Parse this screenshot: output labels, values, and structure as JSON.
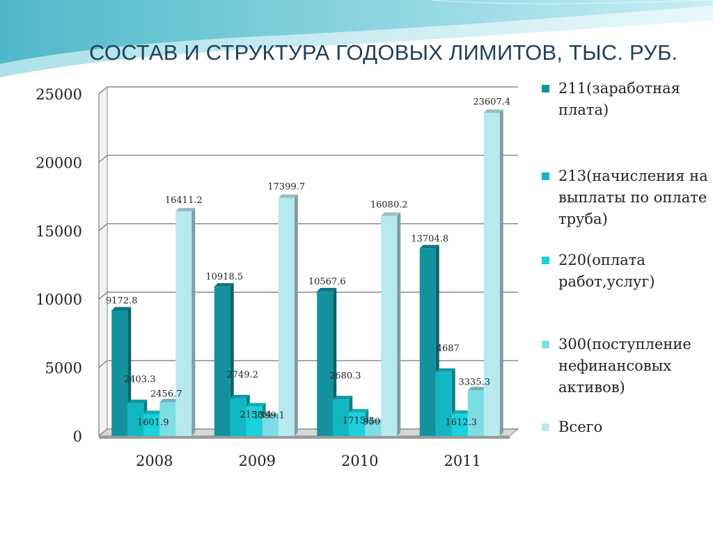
{
  "slide": {
    "title": "СОСТАВ И СТРУКТУРА ГОДОВЫХ ЛИМИТОВ, ТЫС. РУБ.",
    "colors": {
      "header_wave_dark": "#58c0d0",
      "header_wave_light": "#bde7ef",
      "title": "#1f3f5a"
    }
  },
  "chart_data": {
    "type": "bar",
    "title": "",
    "xlabel": "",
    "ylabel": "",
    "categories": [
      "2008",
      "2009",
      "2010",
      "2011"
    ],
    "ylim": [
      0,
      25000
    ],
    "yticks": [
      "0",
      "5000",
      "10000",
      "15000",
      "20000",
      "25000"
    ],
    "grid": true,
    "legend_position": "right",
    "series": [
      {
        "name": "211(заработная плата)",
        "color": "#13929e",
        "values": [
          9172.8,
          10918.5,
          10567.6,
          13704.8
        ],
        "labels": [
          "9172.8",
          "10918.5",
          "10567.6",
          "13704.8"
        ]
      },
      {
        "name": "213(начисления на выплаты по оплате труба)",
        "color": "#11b8c4",
        "values": [
          2403.3,
          2749.2,
          2680.3,
          4687
        ],
        "labels": [
          "2403.3",
          "2749.2",
          "2680.3",
          "4687"
        ]
      },
      {
        "name": "220(оплата работ,услуг)",
        "color": "#19d2dc",
        "values": [
          1601.9,
          2158.4,
          1715.3,
          1612.3
        ],
        "labels": [
          "1601.9",
          "2158.4",
          "1715.3",
          "1612.3"
        ]
      },
      {
        "name": "300(поступление нефинансовых активов)",
        "color": "#7ddde4",
        "values": [
          2456.7,
          1399.1,
          950,
          3335.3
        ],
        "labels": [
          "2456.7",
          "1399.1",
          "950",
          "3335.3"
        ]
      },
      {
        "name": "Всего",
        "color": "#b7e9ee",
        "values": [
          16411.2,
          17399.7,
          16080.2,
          23607.4
        ],
        "labels": [
          "16411.2",
          "17399.7",
          "16080.2",
          "23607.4"
        ]
      }
    ]
  }
}
